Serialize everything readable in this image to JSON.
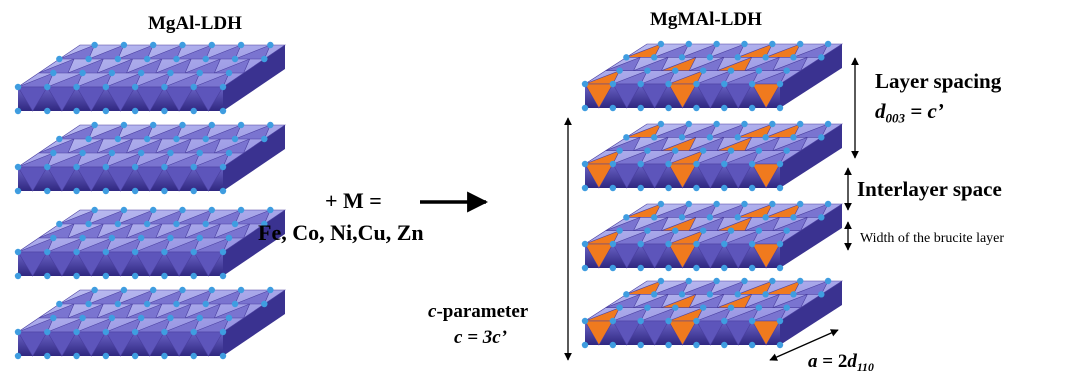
{
  "left_title": "MgAl-LDH",
  "right_title": "MgMAl-LDH",
  "reaction": {
    "line1": "+ M =",
    "line2": "Fe, Co, Ni,Cu, Zn"
  },
  "annotations": {
    "layer_spacing_label": "Layer spacing",
    "d003_symbol": "d",
    "d003_subscript": "003",
    "d003_rhs": "= c’",
    "interlayer_space_label": "Interlayer space",
    "brucite_width_label": "Width of the brucite layer",
    "c_param_symbol": "c",
    "c_param_text": "-parameter",
    "c_eq_symbol": "c",
    "c_eq_rhs": "= 3c’",
    "a_eq_lhs": "a",
    "a_eq_mid": "= 2",
    "a_eq_d": "d",
    "a_eq_subscript": "110"
  },
  "colors": {
    "layer_dark": "#4a3fa0",
    "layer_mid": "#7a74d0",
    "layer_light": "#aeb0ec",
    "atom": "#3f9de0",
    "substituent": "#f07a1e",
    "arrow": "#000000"
  }
}
